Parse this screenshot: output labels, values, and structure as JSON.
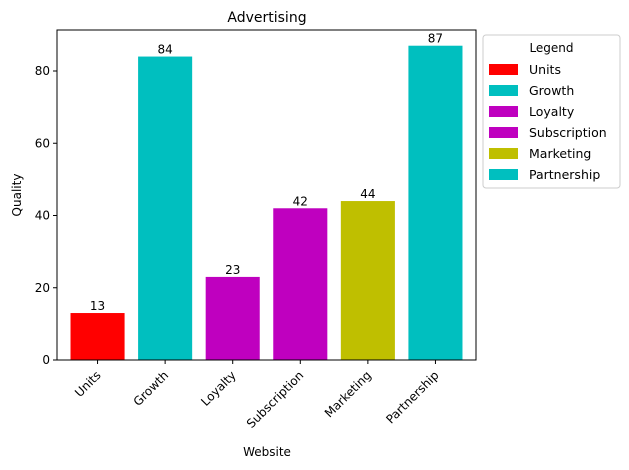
{
  "chart_data": {
    "type": "bar",
    "title": "Advertising",
    "xlabel": "Website",
    "ylabel": "Quality",
    "categories": [
      "Units",
      "Growth",
      "Loyalty",
      "Subscription",
      "Marketing",
      "Partnership"
    ],
    "values": [
      13,
      84,
      23,
      42,
      44,
      87
    ],
    "colors": [
      "#ff0000",
      "#00bfbf",
      "#bf00bf",
      "#bf00bf",
      "#bfbf00",
      "#00bfbf"
    ],
    "ylim": [
      0,
      91.35
    ],
    "yticks": [
      0,
      20,
      40,
      60,
      80
    ],
    "grid": false,
    "legend": {
      "title": "Legend",
      "placement": "outside-upper-right",
      "entries": [
        "Units",
        "Growth",
        "Loyalty",
        "Subscription",
        "Marketing",
        "Partnership"
      ]
    }
  }
}
